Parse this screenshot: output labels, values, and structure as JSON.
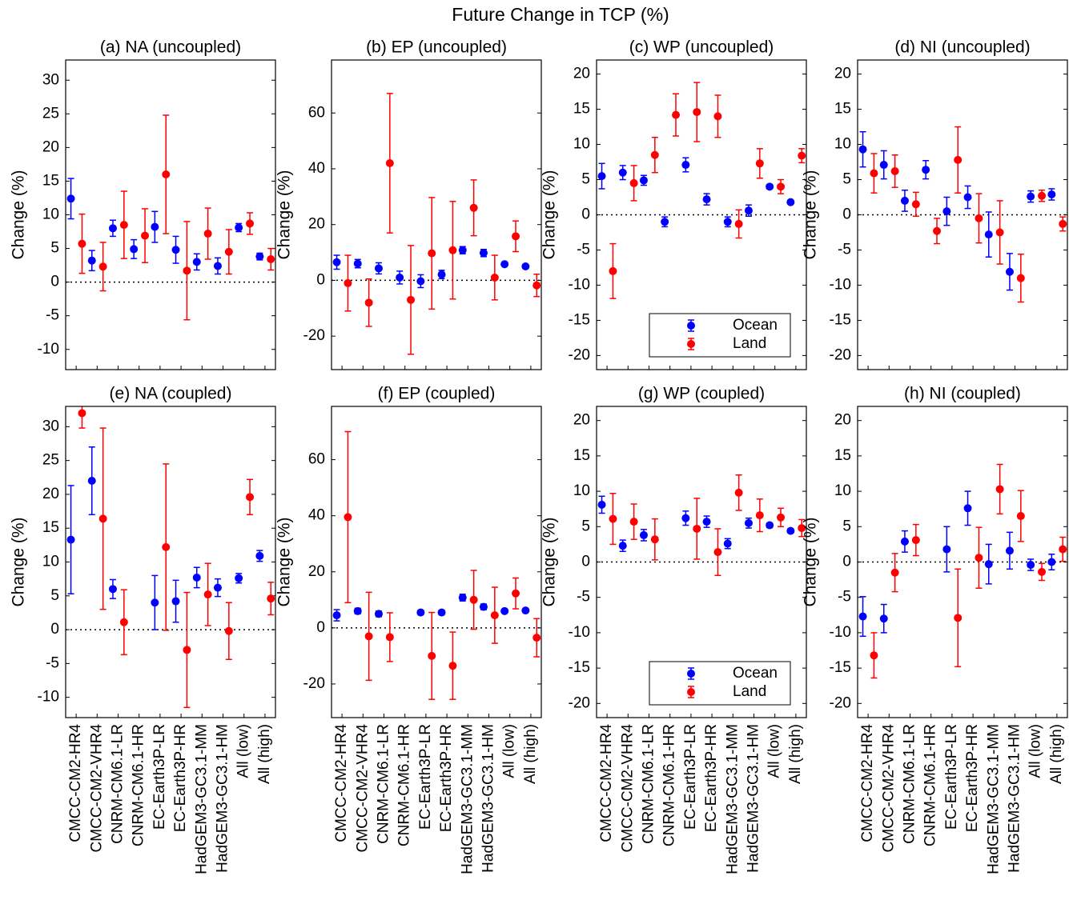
{
  "title": "Future Change in TCP (%)",
  "chart_data": [
    {
      "type": "errorbar",
      "title": "(a) NA (uncoupled)",
      "ylabel": "Change (%)",
      "ylim": [
        -13,
        33
      ],
      "yticks": [
        -10,
        -5,
        0,
        5,
        10,
        15,
        20,
        25,
        30
      ],
      "hline": 0,
      "series": [
        {
          "color": "#0000ff",
          "values": [
            12.4,
            3.2,
            8,
            4.9,
            8.2,
            4.8,
            3,
            2.4,
            8.1,
            3.8
          ],
          "errors": [
            3,
            1.5,
            1.2,
            1.4,
            2.3,
            2,
            1.2,
            1.2,
            0.6,
            0.5
          ]
        },
        {
          "color": "#ff0000",
          "values": [
            5.7,
            2.3,
            8.5,
            6.9,
            16,
            1.7,
            7.2,
            4.5,
            8.7,
            3.4
          ],
          "errors": [
            4.4,
            3.6,
            5,
            4,
            8.8,
            7.3,
            3.8,
            3.3,
            1.6,
            1.6
          ]
        }
      ]
    },
    {
      "type": "errorbar",
      "title": "(b) EP (uncoupled)",
      "ylabel": "Change (%)",
      "ylim": [
        -32,
        79
      ],
      "yticks": [
        -20,
        0,
        20,
        40,
        60
      ],
      "hline": 0,
      "series": [
        {
          "color": "#0000ff",
          "values": [
            6.5,
            6,
            4.3,
            1,
            -0.3,
            2.1,
            10.8,
            9.8,
            5.8,
            5
          ],
          "errors": [
            2.5,
            1.5,
            2,
            2.3,
            2.3,
            1.5,
            1.3,
            1.3,
            0.6,
            0.6
          ]
        },
        {
          "color": "#ff0000",
          "values": [
            -1,
            -8,
            42,
            -7,
            9.7,
            10.8,
            26,
            1,
            15.8,
            -1.8
          ],
          "errors": [
            10,
            8.5,
            25,
            19.5,
            20,
            17.5,
            10,
            8,
            5.5,
            4
          ]
        }
      ]
    },
    {
      "type": "errorbar",
      "title": "(c) WP (uncoupled)",
      "ylabel": "Change (%)",
      "ylim": [
        -22,
        22
      ],
      "yticks": [
        -20,
        -15,
        -10,
        -5,
        0,
        5,
        10,
        15,
        20
      ],
      "hline": 0,
      "legend": "lower right",
      "series": [
        {
          "name": "Ocean",
          "color": "#0000ff",
          "values": [
            5.5,
            6,
            4.9,
            -1,
            7.1,
            2.2,
            -1,
            0.6,
            4,
            1.8
          ],
          "errors": [
            1.8,
            1,
            0.7,
            0.7,
            1,
            0.8,
            0.7,
            0.8,
            0.3,
            0.2
          ]
        },
        {
          "name": "Land",
          "color": "#ff0000",
          "values": [
            -8,
            4.5,
            8.5,
            14.2,
            14.6,
            14,
            -1.3,
            7.3,
            4,
            8.4
          ],
          "errors": [
            3.9,
            2.5,
            2.5,
            3,
            4.2,
            3,
            2,
            2.1,
            1,
            1
          ]
        }
      ]
    },
    {
      "type": "errorbar",
      "title": "(d) NI (uncoupled)",
      "ylabel": "Change (%)",
      "ylim": [
        -22,
        22
      ],
      "yticks": [
        -20,
        -15,
        -10,
        -5,
        0,
        5,
        10,
        15,
        20
      ],
      "hline": 0,
      "series": [
        {
          "color": "#0000ff",
          "values": [
            9.3,
            7.1,
            2,
            6.4,
            0.5,
            2.5,
            -2.8,
            -8.1,
            2.6,
            2.9
          ],
          "errors": [
            2.5,
            2,
            1.5,
            1.3,
            2,
            1.6,
            3.2,
            2.6,
            0.8,
            0.8
          ]
        },
        {
          "color": "#ff0000",
          "values": [
            5.9,
            6.2,
            1.5,
            -2.3,
            7.8,
            -0.5,
            -2.5,
            -9,
            2.7,
            -1.3
          ],
          "errors": [
            2.8,
            2.3,
            1.7,
            1.8,
            4.7,
            3.5,
            4.5,
            3.4,
            0.8,
            1
          ]
        }
      ]
    },
    {
      "type": "errorbar",
      "title": "(e) NA (coupled)",
      "ylabel": "Change (%)",
      "ylim": [
        -13,
        33
      ],
      "yticks": [
        -10,
        -5,
        0,
        5,
        10,
        15,
        20,
        25,
        30
      ],
      "hline": 0,
      "categories": [
        "CMCC-CM2-HR4",
        "CMCC-CM2-VHR4",
        "CNRM-CM6.1-LR",
        "CNRM-CM6.1-HR",
        "EC-Earth3P-LR",
        "EC-Earth3P-HR",
        "HadGEM3-GC3.1-MM",
        "HadGEM3-GC3.1-HM",
        "All (low)",
        "All (high)"
      ],
      "series": [
        {
          "color": "#0000ff",
          "values": [
            13.3,
            22,
            6,
            null,
            4,
            4.2,
            7.7,
            6.2,
            7.6,
            10.9
          ],
          "errors": [
            8,
            5,
            1.4,
            null,
            4,
            3.1,
            1.5,
            1.3,
            0.7,
            0.8
          ]
        },
        {
          "color": "#ff0000",
          "values": [
            32,
            16.4,
            1.1,
            null,
            12.2,
            -3,
            5.2,
            -0.2,
            19.6,
            4.6
          ],
          "errors": [
            2.2,
            13.4,
            4.8,
            null,
            12.3,
            8.5,
            4.6,
            4.2,
            2.6,
            2.4
          ]
        }
      ]
    },
    {
      "type": "errorbar",
      "title": "(f) EP (coupled)",
      "ylabel": "Change (%)",
      "ylim": [
        -32,
        79
      ],
      "yticks": [
        -20,
        0,
        20,
        40,
        60
      ],
      "hline": 0,
      "categories": [
        "CMCC-CM2-HR4",
        "CMCC-CM2-VHR4",
        "CNRM-CM6.1-LR",
        "CNRM-CM6.1-HR",
        "EC-Earth3P-LR",
        "EC-Earth3P-HR",
        "HadGEM3-GC3.1-MM",
        "HadGEM3-GC3.1-HM",
        "All (low)",
        "All (high)"
      ],
      "series": [
        {
          "color": "#0000ff",
          "values": [
            4.5,
            6,
            5,
            null,
            5.5,
            5.5,
            10.8,
            7.5,
            6,
            6.2
          ],
          "errors": [
            2,
            1,
            1,
            null,
            0.8,
            0.8,
            1.2,
            1,
            0.5,
            0.5
          ]
        },
        {
          "color": "#ff0000",
          "values": [
            39.5,
            -3,
            -3.3,
            null,
            -10,
            -13.5,
            10,
            4.5,
            12.3,
            -3.5
          ],
          "errors": [
            30.5,
            15.7,
            8.7,
            null,
            15.5,
            12,
            10.5,
            10,
            5.5,
            6.8
          ]
        }
      ]
    },
    {
      "type": "errorbar",
      "title": "(g) WP (coupled)",
      "ylabel": "Change (%)",
      "ylim": [
        -22,
        22
      ],
      "yticks": [
        -20,
        -15,
        -10,
        -5,
        0,
        5,
        10,
        15,
        20
      ],
      "hline": 0,
      "legend": "lower right",
      "categories": [
        "CMCC-CM2-HR4",
        "CMCC-CM2-VHR4",
        "CNRM-CM6.1-LR",
        "CNRM-CM6.1-HR",
        "EC-Earth3P-LR",
        "EC-Earth3P-HR",
        "HadGEM3-GC3.1-MM",
        "HadGEM3-GC3.1-HM",
        "All (low)",
        "All (high)"
      ],
      "series": [
        {
          "name": "Ocean",
          "color": "#0000ff",
          "values": [
            8.1,
            2.3,
            3.8,
            null,
            6.2,
            5.7,
            2.6,
            5.5,
            5.2,
            4.4
          ],
          "errors": [
            1.2,
            0.8,
            0.8,
            null,
            1,
            0.8,
            0.7,
            0.7,
            0.3,
            0.3
          ]
        },
        {
          "name": "Land",
          "color": "#ff0000",
          "values": [
            6.1,
            5.7,
            3.2,
            null,
            4.7,
            1.4,
            9.8,
            6.6,
            6.3,
            4.8
          ],
          "errors": [
            3.6,
            2.5,
            2.9,
            null,
            4.3,
            3.3,
            2.5,
            2.3,
            1.3,
            1.2
          ]
        }
      ]
    },
    {
      "type": "errorbar",
      "title": "(h) NI (coupled)",
      "ylabel": "Change (%)",
      "ylim": [
        -22,
        22
      ],
      "yticks": [
        -20,
        -15,
        -10,
        -5,
        0,
        5,
        10,
        15,
        20
      ],
      "hline": 0,
      "categories": [
        "CMCC-CM2-HR4",
        "CMCC-CM2-VHR4",
        "CNRM-CM6.1-LR",
        "CNRM-CM6.1-HR",
        "EC-Earth3P-LR",
        "EC-Earth3P-HR",
        "HadGEM3-GC3.1-MM",
        "HadGEM3-GC3.1-HM",
        "All (low)",
        "All (high)"
      ],
      "series": [
        {
          "color": "#0000ff",
          "values": [
            -7.7,
            -8,
            2.9,
            null,
            1.8,
            7.6,
            -0.3,
            1.6,
            -0.4,
            0
          ],
          "errors": [
            2.8,
            2,
            1.5,
            null,
            3.2,
            2.4,
            2.8,
            2.6,
            0.8,
            1.1
          ]
        },
        {
          "color": "#ff0000",
          "values": [
            -13.2,
            -1.5,
            3.1,
            null,
            -7.9,
            0.6,
            10.3,
            6.5,
            -1.4,
            1.8
          ],
          "errors": [
            3.2,
            2.7,
            2.2,
            null,
            6.9,
            4.3,
            3.5,
            3.6,
            1.2,
            1.7
          ]
        }
      ]
    }
  ]
}
